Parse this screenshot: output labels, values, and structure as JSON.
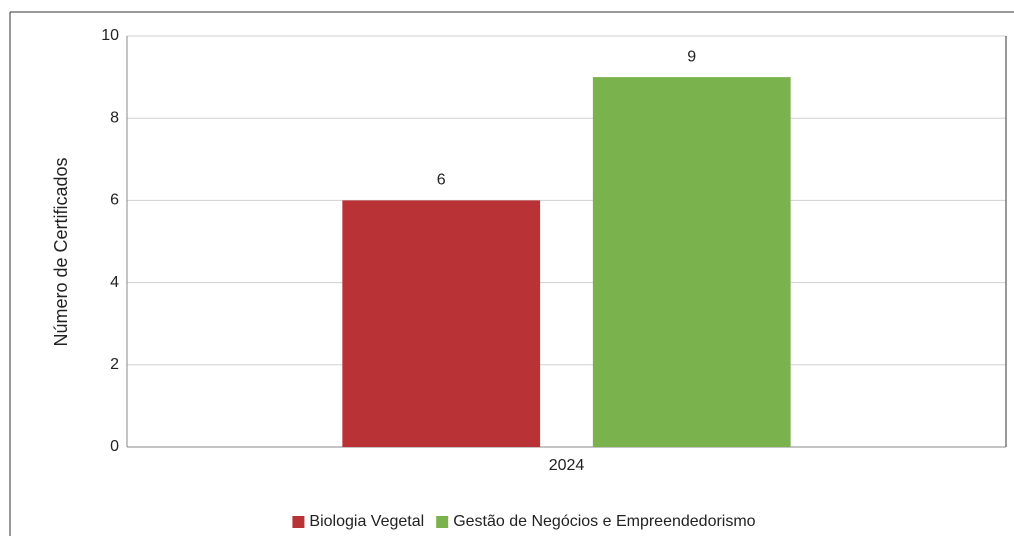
{
  "chart_data": {
    "type": "bar",
    "y_label": "Número de Certificados",
    "categories": [
      "2024"
    ],
    "series": [
      {
        "name": "Biologia Vegetal",
        "color": "#b83236",
        "values": [
          6
        ]
      },
      {
        "name": "Gestão de Negócios e Empreendedorismo",
        "color": "#7ab24e",
        "values": [
          9
        ]
      }
    ],
    "ylim": [
      0,
      10
    ],
    "yticks": [
      0,
      2,
      4,
      6,
      8,
      10
    ],
    "grid": true,
    "legend": "bottom"
  }
}
